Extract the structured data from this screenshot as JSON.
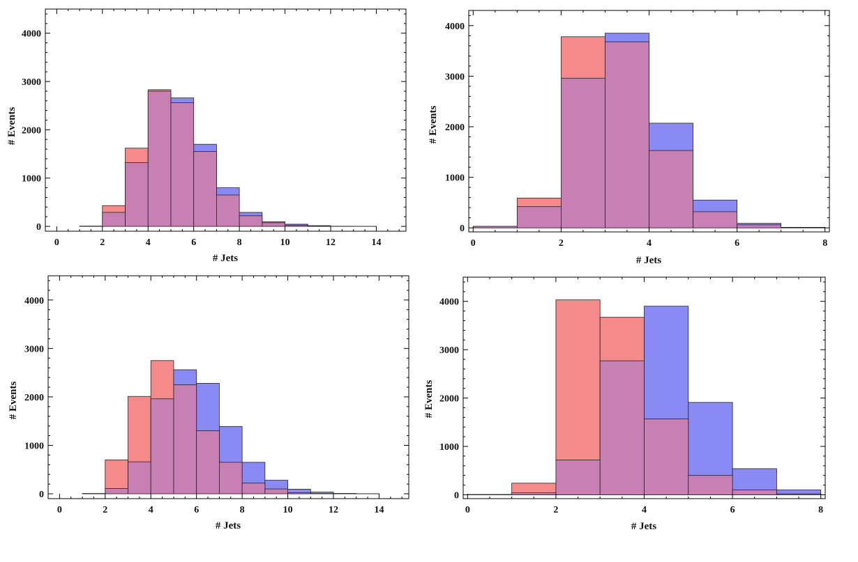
{
  "colors": {
    "series_a": "#f48a8a",
    "series_b": "#8a8af4",
    "overlap": "#c77fb4",
    "axis": "#000000"
  },
  "chart_data": [
    {
      "type": "bar",
      "xlabel": "# Jets",
      "ylabel": "# Events",
      "xlim": [
        -0.5,
        15.3
      ],
      "ylim": [
        -100,
        4500
      ],
      "xticks": [
        0,
        2,
        4,
        6,
        8,
        10,
        12,
        14
      ],
      "yticks": [
        0,
        1000,
        2000,
        3000,
        4000
      ],
      "bins": [
        [
          1,
          2
        ],
        [
          2,
          3
        ],
        [
          3,
          4
        ],
        [
          4,
          5
        ],
        [
          5,
          6
        ],
        [
          6,
          7
        ],
        [
          7,
          8
        ],
        [
          8,
          9
        ],
        [
          9,
          10
        ],
        [
          10,
          11
        ],
        [
          11,
          12
        ],
        [
          12,
          13
        ],
        [
          13,
          14
        ]
      ],
      "series": [
        {
          "values": [
            5,
            430,
            1620,
            2830,
            2560,
            1550,
            650,
            220,
            95,
            25,
            8,
            3,
            1
          ]
        },
        {
          "values": [
            5,
            290,
            1320,
            2800,
            2660,
            1700,
            800,
            290,
            75,
            45,
            15,
            3,
            1
          ]
        }
      ]
    },
    {
      "type": "bar",
      "xlabel": "# Jets",
      "ylabel": "# Events",
      "xlim": [
        -0.1,
        8.1
      ],
      "ylim": [
        -80,
        4300
      ],
      "xticks": [
        0,
        2,
        4,
        6,
        8
      ],
      "yticks": [
        0,
        1000,
        2000,
        3000,
        4000
      ],
      "bins": [
        [
          0,
          1
        ],
        [
          1,
          2
        ],
        [
          2,
          3
        ],
        [
          3,
          4
        ],
        [
          4,
          5
        ],
        [
          5,
          6
        ],
        [
          6,
          7
        ],
        [
          7,
          8
        ]
      ],
      "series": [
        {
          "values": [
            30,
            590,
            3780,
            3680,
            1530,
            320,
            60,
            10
          ]
        },
        {
          "values": [
            30,
            420,
            2960,
            3850,
            2070,
            550,
            90,
            10
          ]
        }
      ]
    },
    {
      "type": "bar",
      "xlabel": "# Jets",
      "ylabel": "# Events",
      "xlim": [
        -0.5,
        15.3
      ],
      "ylim": [
        -100,
        4500
      ],
      "xticks": [
        0,
        2,
        4,
        6,
        8,
        10,
        12,
        14
      ],
      "yticks": [
        0,
        1000,
        2000,
        3000,
        4000
      ],
      "bins": [
        [
          1,
          2
        ],
        [
          2,
          3
        ],
        [
          3,
          4
        ],
        [
          4,
          5
        ],
        [
          5,
          6
        ],
        [
          6,
          7
        ],
        [
          7,
          8
        ],
        [
          8,
          9
        ],
        [
          9,
          10
        ],
        [
          10,
          11
        ],
        [
          11,
          12
        ],
        [
          12,
          13
        ],
        [
          13,
          14
        ]
      ],
      "series": [
        {
          "values": [
            5,
            700,
            2010,
            2750,
            2250,
            1300,
            650,
            220,
            100,
            20,
            5,
            2,
            1
          ]
        },
        {
          "values": [
            5,
            110,
            660,
            1960,
            2560,
            2280,
            1390,
            650,
            280,
            95,
            35,
            8,
            2
          ]
        }
      ]
    },
    {
      "type": "bar",
      "xlabel": "# Jets",
      "ylabel": "# Events",
      "xlim": [
        -0.1,
        8.1
      ],
      "ylim": [
        -80,
        4500
      ],
      "xticks": [
        0,
        2,
        4,
        6,
        8
      ],
      "yticks": [
        0,
        1000,
        2000,
        3000,
        4000
      ],
      "bins": [
        [
          0,
          1
        ],
        [
          1,
          2
        ],
        [
          2,
          3
        ],
        [
          3,
          4
        ],
        [
          4,
          5
        ],
        [
          5,
          6
        ],
        [
          6,
          7
        ],
        [
          7,
          8
        ]
      ],
      "series": [
        {
          "values": [
            5,
            240,
            4030,
            3670,
            1570,
            400,
            100,
            20
          ]
        },
        {
          "values": [
            5,
            40,
            720,
            2770,
            3900,
            1910,
            540,
            100
          ]
        }
      ]
    }
  ]
}
